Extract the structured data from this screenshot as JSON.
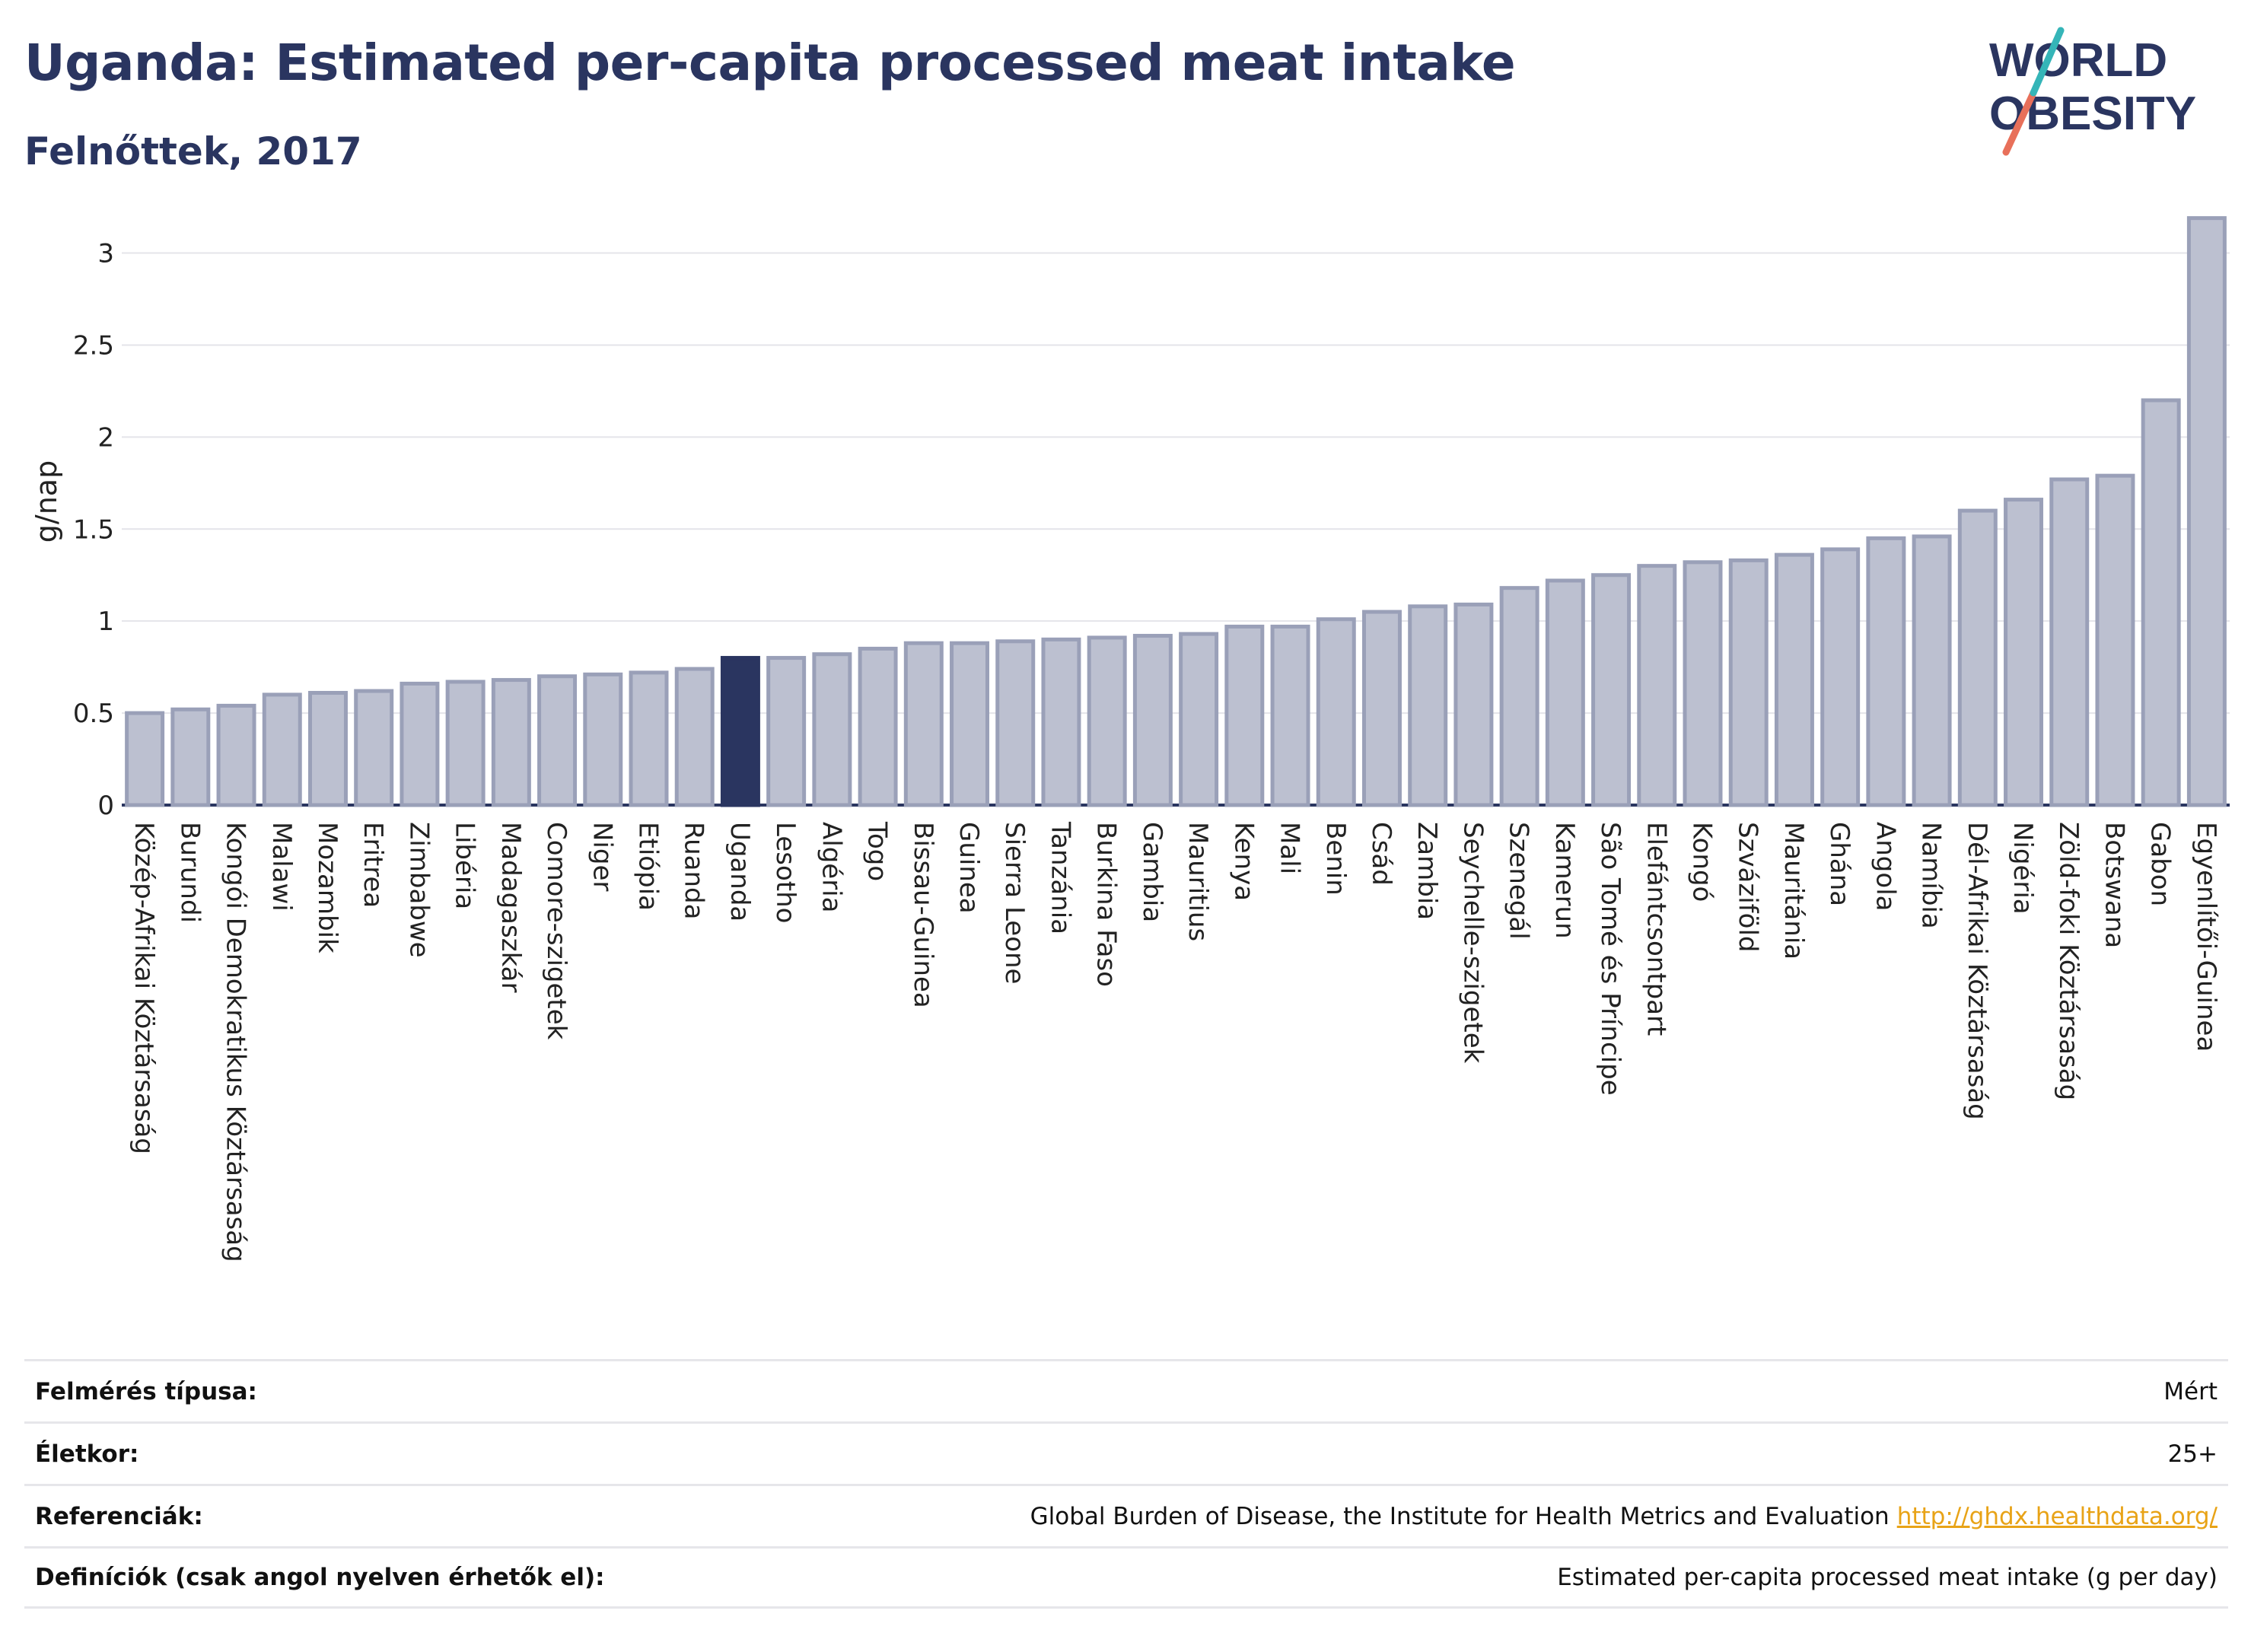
{
  "title": "Uganda: Estimated per-capita processed meat intake",
  "subtitle": "Felnőttek, 2017",
  "logo": {
    "line1": "WORLD",
    "line2": "OBESITY"
  },
  "colors": {
    "bar": "#bcc0d0",
    "bar_edge": "#9aa0b8",
    "highlight": "#2a3560",
    "title": "#2a3560",
    "logo_teal": "#35b5b8",
    "logo_coral": "#e8705a"
  },
  "chart_data": {
    "type": "bar",
    "title": "Uganda: Estimated per-capita processed meat intake",
    "subtitle": "Felnőttek, 2017",
    "xlabel": "",
    "ylabel": "g/nap",
    "ylim": [
      0,
      3.3
    ],
    "yticks": [
      0,
      0.5,
      1,
      1.5,
      2,
      2.5,
      3
    ],
    "ytick_labels": [
      "0",
      "0.5",
      "1",
      "1.5",
      "2",
      "2.5",
      "3"
    ],
    "grid": true,
    "highlight": "Uganda",
    "categories": [
      "Közép-Afrikai Köztársaság",
      "Burundi",
      "Kongói Demokratikus Köztársaság",
      "Malawi",
      "Mozambik",
      "Eritrea",
      "Zimbabwe",
      "Libéria",
      "Madagaszkár",
      "Comore-szigetek",
      "Niger",
      "Etiópia",
      "Ruanda",
      "Uganda",
      "Lesotho",
      "Algéria",
      "Togo",
      "Bissau-Guinea",
      "Guinea",
      "Sierra Leone",
      "Tanzánia",
      "Burkina Faso",
      "Gambia",
      "Mauritius",
      "Kenya",
      "Mali",
      "Benin",
      "Csád",
      "Zambia",
      "Seychelle-szigetek",
      "Szenegál",
      "Kamerun",
      "São Tomé és Príncipe",
      "Elefántcsontpart",
      "Kongó",
      "Szváziföld",
      "Mauritánia",
      "Ghána",
      "Angola",
      "Namíbia",
      "Dél-Afrikai Köztársaság",
      "Nigéria",
      "Zöld-foki Köztársaság",
      "Botswana",
      "Gabon",
      "Egyenlítői-Guinea"
    ],
    "values": [
      0.5,
      0.52,
      0.54,
      0.6,
      0.61,
      0.62,
      0.66,
      0.67,
      0.68,
      0.7,
      0.71,
      0.72,
      0.74,
      0.8,
      0.8,
      0.82,
      0.85,
      0.88,
      0.88,
      0.89,
      0.9,
      0.91,
      0.92,
      0.93,
      0.97,
      0.97,
      1.01,
      1.05,
      1.08,
      1.09,
      1.18,
      1.22,
      1.25,
      1.3,
      1.32,
      1.33,
      1.36,
      1.39,
      1.45,
      1.46,
      1.6,
      1.66,
      1.77,
      1.79,
      2.2,
      3.19
    ]
  },
  "meta": [
    {
      "key": "Felmérés típusa:",
      "value": "Mért"
    },
    {
      "key": "Életkor:",
      "value": "25+"
    },
    {
      "key": "Referenciák:",
      "value": "Global Burden of Disease, the Institute for Health Metrics and Evaluation",
      "link": "http://ghdx.healthdata.org/"
    },
    {
      "key": "Definíciók (csak angol nyelven érhetők el):",
      "value": "Estimated per-capita processed meat intake (g per day)"
    }
  ]
}
